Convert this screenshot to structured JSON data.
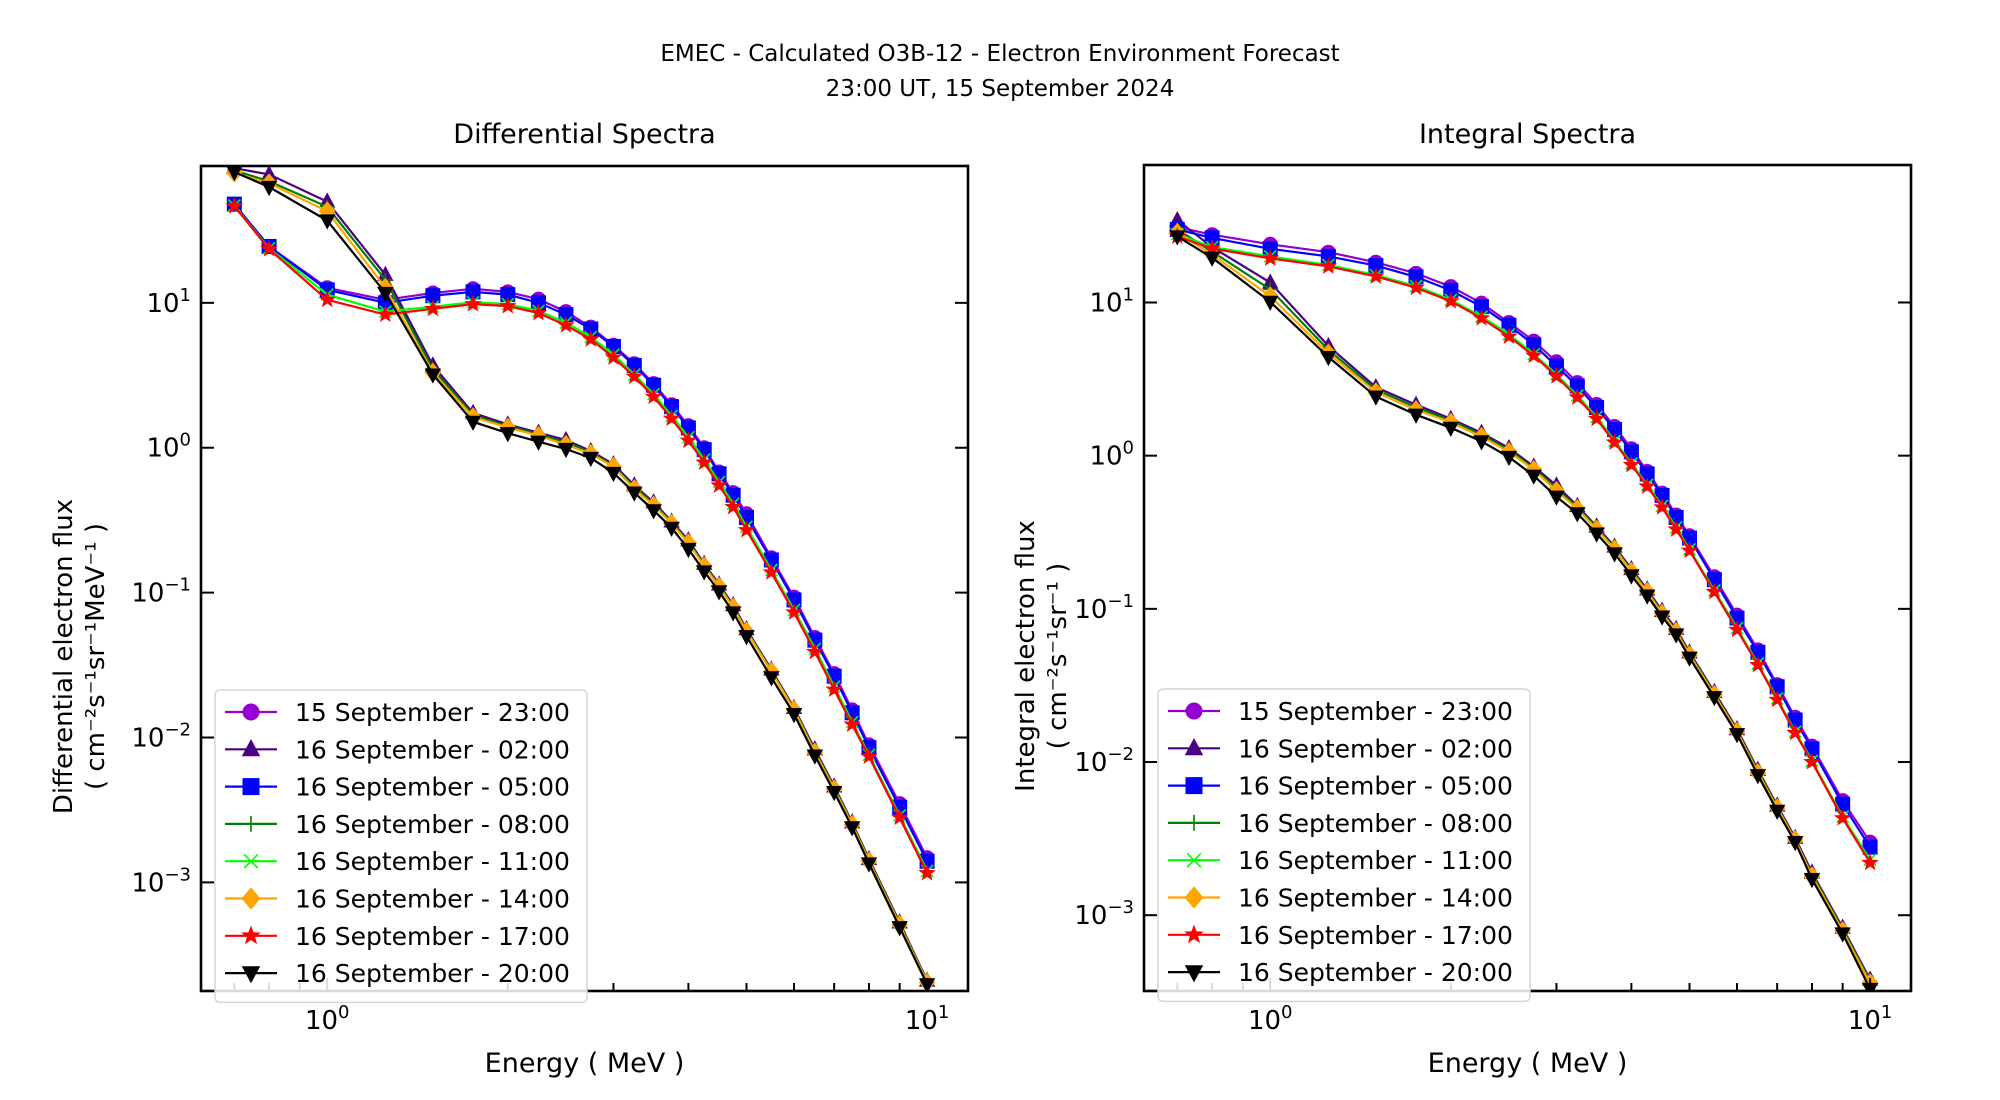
{
  "figure": {
    "suptitle_line1": "EMEC - Calculated O3B-12 - Electron Environment Forecast",
    "suptitle_line2": "23:00 UT, 15 September 2024"
  },
  "chart_data": [
    {
      "type": "line",
      "title": "Differential Spectra",
      "xlabel": "Energy ( MeV )",
      "ylabel_line1": "Differential electron flux",
      "ylabel_line2": "( cm⁻²s⁻¹sr⁻¹MeV⁻¹ )",
      "xscale": "log",
      "yscale": "log",
      "xlim": [
        0.616,
        11.7
      ],
      "ylim": [
        0.000178,
        88
      ],
      "xticks": [
        {
          "value": 1,
          "label": "10^0"
        },
        {
          "value": 10,
          "label": "10^1"
        }
      ],
      "yticks": [
        {
          "value": 0.001,
          "label": "10^-3"
        },
        {
          "value": 0.01,
          "label": "10^-2"
        },
        {
          "value": 0.1,
          "label": "10^-1"
        },
        {
          "value": 1,
          "label": "10^0"
        },
        {
          "value": 10,
          "label": "10^1"
        }
      ],
      "grid": false,
      "legend_position": "lower-left",
      "x": [
        0.7,
        0.8,
        1.0,
        1.25,
        1.5,
        1.75,
        2.0,
        2.25,
        2.5,
        2.75,
        3.0,
        3.25,
        3.5,
        3.75,
        4.0,
        4.25,
        4.5,
        4.75,
        5.0,
        5.5,
        6.0,
        6.5,
        7.0,
        7.5,
        8.0,
        9.0,
        10.0
      ],
      "series": [
        {
          "name": "15 September - 23:00",
          "color": "#9400d3",
          "marker": "circle",
          "values": [
            48,
            24.5,
            12.7,
            10.5,
            11.7,
            12.5,
            11.9,
            10.6,
            8.7,
            6.8,
            5.1,
            3.8,
            2.77,
            1.98,
            1.42,
            1.0,
            0.68,
            0.49,
            0.35,
            0.174,
            0.093,
            0.049,
            0.0276,
            0.0155,
            0.0089,
            0.0035,
            0.00148
          ]
        },
        {
          "name": "16 September - 02:00",
          "color": "#4b0082",
          "marker": "triangle-up",
          "values": [
            85,
            77,
            50,
            15.6,
            3.7,
            1.74,
            1.45,
            1.27,
            1.13,
            0.95,
            0.77,
            0.55,
            0.42,
            0.31,
            0.23,
            0.158,
            0.114,
            0.082,
            0.056,
            0.0295,
            0.016,
            0.0083,
            0.0046,
            0.0026,
            0.00145,
            0.00053,
            0.00021
          ]
        },
        {
          "name": "16 September - 05:00",
          "color": "#0000ff",
          "marker": "square",
          "values": [
            48,
            24.5,
            12.3,
            10.0,
            11.2,
            11.9,
            11.4,
            10.0,
            8.3,
            6.6,
            5.0,
            3.7,
            2.7,
            1.92,
            1.37,
            0.97,
            0.66,
            0.47,
            0.33,
            0.168,
            0.089,
            0.047,
            0.0265,
            0.0148,
            0.0085,
            0.0033,
            0.0014
          ]
        },
        {
          "name": "16 September - 08:00",
          "color": "#008000",
          "marker": "plus",
          "values": [
            82,
            69,
            46,
            14.4,
            3.5,
            1.68,
            1.41,
            1.24,
            1.09,
            0.93,
            0.75,
            0.535,
            0.41,
            0.305,
            0.225,
            0.155,
            0.112,
            0.08,
            0.055,
            0.029,
            0.0157,
            0.0081,
            0.0045,
            0.00255,
            0.00142,
            0.00052,
            0.000207
          ]
        },
        {
          "name": "16 September - 11:00",
          "color": "#00ff00",
          "marker": "x",
          "values": [
            47,
            23.8,
            11.4,
            8.7,
            9.4,
            10.1,
            9.8,
            8.8,
            7.3,
            5.8,
            4.4,
            3.2,
            2.35,
            1.66,
            1.18,
            0.83,
            0.58,
            0.41,
            0.285,
            0.143,
            0.076,
            0.041,
            0.0225,
            0.0128,
            0.0076,
            0.0029,
            0.0012
          ]
        },
        {
          "name": "16 September - 14:00",
          "color": "#ffa500",
          "marker": "diamond",
          "values": [
            79,
            67,
            43,
            12.7,
            3.3,
            1.63,
            1.38,
            1.21,
            1.05,
            0.91,
            0.74,
            0.52,
            0.4,
            0.3,
            0.22,
            0.152,
            0.11,
            0.079,
            0.054,
            0.0285,
            0.0155,
            0.0079,
            0.0044,
            0.0025,
            0.0014,
            0.00051,
            0.000204
          ]
        },
        {
          "name": "16 September - 17:00",
          "color": "#ff0000",
          "marker": "star",
          "values": [
            46.5,
            23.5,
            10.5,
            8.3,
            9.1,
            9.8,
            9.5,
            8.5,
            7.0,
            5.6,
            4.2,
            3.1,
            2.25,
            1.59,
            1.12,
            0.79,
            0.55,
            0.39,
            0.27,
            0.138,
            0.073,
            0.039,
            0.0214,
            0.0123,
            0.0074,
            0.0028,
            0.00116
          ]
        },
        {
          "name": "16 September - 20:00",
          "color": "#000000",
          "marker": "triangle-down",
          "values": [
            80,
            63,
            37,
            11.7,
            3.2,
            1.51,
            1.26,
            1.1,
            0.98,
            0.85,
            0.67,
            0.49,
            0.37,
            0.28,
            0.2,
            0.14,
            0.102,
            0.073,
            0.05,
            0.026,
            0.0145,
            0.0075,
            0.0042,
            0.0024,
            0.00135,
            0.00049,
            0.000198
          ]
        }
      ]
    },
    {
      "type": "line",
      "title": "Integral Spectra",
      "xlabel": "Energy ( MeV )",
      "ylabel_line1": "Integral electron flux",
      "ylabel_line2": "( cm⁻²s⁻¹sr⁻¹ )",
      "xscale": "log",
      "yscale": "log",
      "xlim": [
        0.616,
        11.7
      ],
      "ylim": [
        0.00032,
        79
      ],
      "xticks": [
        {
          "value": 1,
          "label": "10^0"
        },
        {
          "value": 10,
          "label": "10^1"
        }
      ],
      "yticks": [
        {
          "value": 0.001,
          "label": "10^-3"
        },
        {
          "value": 0.01,
          "label": "10^-2"
        },
        {
          "value": 0.1,
          "label": "10^-1"
        },
        {
          "value": 1,
          "label": "10^0"
        },
        {
          "value": 10,
          "label": "10^1"
        }
      ],
      "grid": false,
      "legend_position": "lower-left",
      "x": [
        0.7,
        0.8,
        1.0,
        1.25,
        1.5,
        1.75,
        2.0,
        2.25,
        2.5,
        2.75,
        3.0,
        3.25,
        3.5,
        3.75,
        4.0,
        4.25,
        4.5,
        4.75,
        5.0,
        5.5,
        6.0,
        6.5,
        7.0,
        7.5,
        8.0,
        9.0,
        10.0
      ],
      "series": [
        {
          "name": "15 September - 23:00",
          "color": "#9400d3",
          "marker": "circle",
          "values": [
            31,
            27.7,
            24,
            21.3,
            18.3,
            15.5,
            12.7,
            9.9,
            7.4,
            5.6,
            4.1,
            3.0,
            2.16,
            1.55,
            1.11,
            0.79,
            0.57,
            0.41,
            0.3,
            0.162,
            0.091,
            0.054,
            0.032,
            0.0196,
            0.0127,
            0.0056,
            0.003
          ]
        },
        {
          "name": "16 September - 02:00",
          "color": "#4b0082",
          "marker": "triangle-up",
          "values": [
            34.5,
            23,
            13.5,
            5.2,
            2.8,
            2.15,
            1.74,
            1.41,
            1.12,
            0.85,
            0.64,
            0.47,
            0.345,
            0.255,
            0.182,
            0.134,
            0.097,
            0.074,
            0.052,
            0.0287,
            0.0164,
            0.0089,
            0.0052,
            0.0032,
            0.0019,
            0.00083,
            0.00038
          ]
        },
        {
          "name": "16 September - 05:00",
          "color": "#0000ff",
          "marker": "square",
          "values": [
            30,
            26.4,
            22.4,
            20,
            17.4,
            14.7,
            12.0,
            9.4,
            7.1,
            5.3,
            3.85,
            2.85,
            2.06,
            1.48,
            1.06,
            0.76,
            0.55,
            0.395,
            0.29,
            0.155,
            0.087,
            0.052,
            0.031,
            0.0188,
            0.0122,
            0.0053,
            0.00278
          ]
        },
        {
          "name": "16 September - 08:00",
          "color": "#008000",
          "marker": "plus",
          "values": [
            30,
            21.5,
            12.2,
            4.9,
            2.7,
            2.07,
            1.7,
            1.37,
            1.09,
            0.83,
            0.61,
            0.46,
            0.338,
            0.25,
            0.178,
            0.131,
            0.095,
            0.072,
            0.051,
            0.028,
            0.016,
            0.0087,
            0.0051,
            0.0031,
            0.00185,
            0.00081,
            0.00037
          ]
        },
        {
          "name": "16 September - 11:00",
          "color": "#00ff00",
          "marker": "x",
          "values": [
            28,
            23,
            20,
            17.6,
            15.1,
            12.8,
            10.4,
            8.1,
            6.2,
            4.6,
            3.4,
            2.47,
            1.79,
            1.25,
            0.89,
            0.645,
            0.47,
            0.34,
            0.245,
            0.132,
            0.075,
            0.044,
            0.026,
            0.0158,
            0.0102,
            0.0044,
            0.0023
          ]
        },
        {
          "name": "16 September - 14:00",
          "color": "#ffa500",
          "marker": "diamond",
          "values": [
            28.6,
            20.6,
            11,
            4.65,
            2.6,
            1.99,
            1.65,
            1.33,
            1.06,
            0.81,
            0.59,
            0.45,
            0.33,
            0.245,
            0.175,
            0.129,
            0.093,
            0.071,
            0.05,
            0.0275,
            0.0158,
            0.0085,
            0.005,
            0.0031,
            0.0018,
            0.00079,
            0.00036
          ]
        },
        {
          "name": "16 September - 17:00",
          "color": "#ff0000",
          "marker": "star",
          "values": [
            27,
            22.5,
            19.4,
            17.2,
            14.8,
            12.5,
            10.2,
            7.9,
            6.0,
            4.5,
            3.3,
            2.4,
            1.74,
            1.22,
            0.87,
            0.63,
            0.46,
            0.33,
            0.24,
            0.129,
            0.073,
            0.043,
            0.0255,
            0.0155,
            0.01,
            0.0043,
            0.0022
          ]
        },
        {
          "name": "16 September - 20:00",
          "color": "#000000",
          "marker": "triangle-down",
          "values": [
            27,
            19.6,
            10.1,
            4.4,
            2.43,
            1.85,
            1.52,
            1.24,
            0.98,
            0.74,
            0.54,
            0.42,
            0.31,
            0.23,
            0.165,
            0.122,
            0.089,
            0.068,
            0.048,
            0.0265,
            0.0152,
            0.0082,
            0.0048,
            0.003,
            0.00172,
            0.00076,
            0.00033
          ]
        }
      ]
    }
  ]
}
